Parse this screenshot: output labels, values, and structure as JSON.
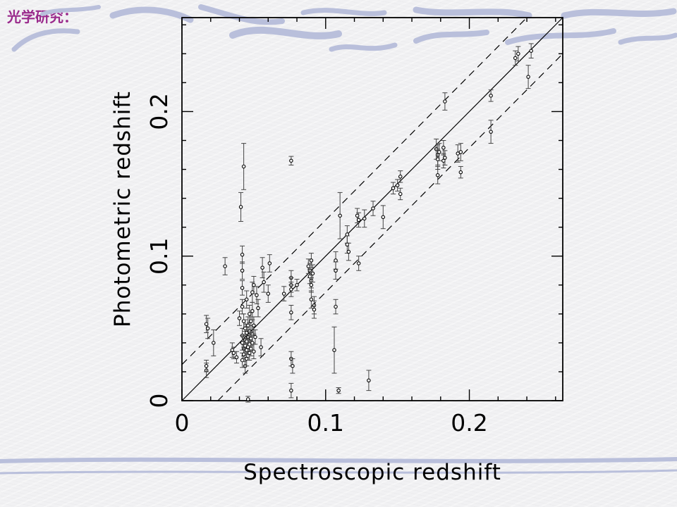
{
  "slide": {
    "title": "光学研究："
  },
  "chart_data": {
    "type": "scatter",
    "title": "",
    "xlabel": "Spectroscopic redshift",
    "ylabel": "Photometric redshift",
    "xlim": [
      0,
      0.265
    ],
    "ylim": [
      0,
      0.265
    ],
    "x_tick_labels": [
      "0",
      "0.1",
      "0.2"
    ],
    "y_tick_labels": [
      "0",
      "0.1",
      "0.2"
    ],
    "x_ticks": [
      0,
      0.1,
      0.2
    ],
    "y_ticks": [
      0,
      0.1,
      0.2
    ],
    "grid": false,
    "reference_lines": [
      {
        "name": "one-to-one",
        "style": "solid",
        "offset": 0
      },
      {
        "name": "upper-bound",
        "style": "dashed",
        "offset": 0.025
      },
      {
        "name": "lower-bound",
        "style": "dashed",
        "offset": -0.025
      }
    ],
    "points": [
      {
        "x": 0.017,
        "y": 0.053,
        "e": 0.006
      },
      {
        "x": 0.017,
        "y": 0.021,
        "e": 0.005
      },
      {
        "x": 0.017,
        "y": 0.024,
        "e": 0.004
      },
      {
        "x": 0.018,
        "y": 0.05,
        "e": 0.007
      },
      {
        "x": 0.022,
        "y": 0.04,
        "e": 0.009
      },
      {
        "x": 0.03,
        "y": 0.093,
        "e": 0.006
      },
      {
        "x": 0.035,
        "y": 0.035,
        "e": 0.005
      },
      {
        "x": 0.036,
        "y": 0.033,
        "e": 0.004
      },
      {
        "x": 0.038,
        "y": 0.03,
        "e": 0.004
      },
      {
        "x": 0.04,
        "y": 0.057,
        "e": 0.005
      },
      {
        "x": 0.041,
        "y": 0.134,
        "e": 0.01
      },
      {
        "x": 0.043,
        "y": 0.162,
        "e": 0.016
      },
      {
        "x": 0.042,
        "y": 0.101,
        "e": 0.006
      },
      {
        "x": 0.042,
        "y": 0.09,
        "e": 0.006
      },
      {
        "x": 0.042,
        "y": 0.078,
        "e": 0.005
      },
      {
        "x": 0.042,
        "y": 0.065,
        "e": 0.005
      },
      {
        "x": 0.042,
        "y": 0.045,
        "e": 0.005
      },
      {
        "x": 0.042,
        "y": 0.04,
        "e": 0.005
      },
      {
        "x": 0.042,
        "y": 0.028,
        "e": 0.005
      },
      {
        "x": 0.043,
        "y": 0.055,
        "e": 0.005
      },
      {
        "x": 0.043,
        "y": 0.036,
        "e": 0.005
      },
      {
        "x": 0.043,
        "y": 0.032,
        "e": 0.005
      },
      {
        "x": 0.044,
        "y": 0.05,
        "e": 0.006
      },
      {
        "x": 0.044,
        "y": 0.042,
        "e": 0.006
      },
      {
        "x": 0.044,
        "y": 0.038,
        "e": 0.005
      },
      {
        "x": 0.044,
        "y": 0.024,
        "e": 0.005
      },
      {
        "x": 0.045,
        "y": 0.07,
        "e": 0.006
      },
      {
        "x": 0.045,
        "y": 0.047,
        "e": 0.006
      },
      {
        "x": 0.045,
        "y": 0.041,
        "e": 0.005
      },
      {
        "x": 0.045,
        "y": 0.035,
        "e": 0.005
      },
      {
        "x": 0.045,
        "y": 0.029,
        "e": 0.005
      },
      {
        "x": 0.046,
        "y": 0.052,
        "e": 0.006
      },
      {
        "x": 0.046,
        "y": 0.044,
        "e": 0.005
      },
      {
        "x": 0.046,
        "y": 0.037,
        "e": 0.005
      },
      {
        "x": 0.046,
        "y": 0.001,
        "e": 0.002
      },
      {
        "x": 0.047,
        "y": 0.06,
        "e": 0.006
      },
      {
        "x": 0.047,
        "y": 0.048,
        "e": 0.006
      },
      {
        "x": 0.047,
        "y": 0.039,
        "e": 0.005
      },
      {
        "x": 0.047,
        "y": 0.033,
        "e": 0.005
      },
      {
        "x": 0.048,
        "y": 0.055,
        "e": 0.006
      },
      {
        "x": 0.048,
        "y": 0.043,
        "e": 0.005
      },
      {
        "x": 0.048,
        "y": 0.036,
        "e": 0.005
      },
      {
        "x": 0.049,
        "y": 0.075,
        "e": 0.007
      },
      {
        "x": 0.049,
        "y": 0.062,
        "e": 0.006
      },
      {
        "x": 0.049,
        "y": 0.046,
        "e": 0.006
      },
      {
        "x": 0.049,
        "y": 0.04,
        "e": 0.005
      },
      {
        "x": 0.05,
        "y": 0.052,
        "e": 0.006
      },
      {
        "x": 0.05,
        "y": 0.034,
        "e": 0.005
      },
      {
        "x": 0.05,
        "y": 0.08,
        "e": 0.006
      },
      {
        "x": 0.051,
        "y": 0.044,
        "e": 0.005
      },
      {
        "x": 0.052,
        "y": 0.073,
        "e": 0.006
      },
      {
        "x": 0.053,
        "y": 0.064,
        "e": 0.006
      },
      {
        "x": 0.055,
        "y": 0.037,
        "e": 0.006
      },
      {
        "x": 0.056,
        "y": 0.092,
        "e": 0.007
      },
      {
        "x": 0.057,
        "y": 0.082,
        "e": 0.007
      },
      {
        "x": 0.06,
        "y": 0.074,
        "e": 0.006
      },
      {
        "x": 0.061,
        "y": 0.095,
        "e": 0.006
      },
      {
        "x": 0.071,
        "y": 0.074,
        "e": 0.005
      },
      {
        "x": 0.076,
        "y": 0.166,
        "e": 0.003
      },
      {
        "x": 0.076,
        "y": 0.085,
        "e": 0.005
      },
      {
        "x": 0.076,
        "y": 0.08,
        "e": 0.005
      },
      {
        "x": 0.076,
        "y": 0.077,
        "e": 0.005
      },
      {
        "x": 0.076,
        "y": 0.061,
        "e": 0.005
      },
      {
        "x": 0.076,
        "y": 0.029,
        "e": 0.005
      },
      {
        "x": 0.077,
        "y": 0.024,
        "e": 0.005
      },
      {
        "x": 0.076,
        "y": 0.007,
        "e": 0.005
      },
      {
        "x": 0.08,
        "y": 0.08,
        "e": 0.004
      },
      {
        "x": 0.088,
        "y": 0.093,
        "e": 0.005
      },
      {
        "x": 0.089,
        "y": 0.09,
        "e": 0.005
      },
      {
        "x": 0.089,
        "y": 0.086,
        "e": 0.005
      },
      {
        "x": 0.09,
        "y": 0.083,
        "e": 0.005
      },
      {
        "x": 0.09,
        "y": 0.08,
        "e": 0.005
      },
      {
        "x": 0.09,
        "y": 0.097,
        "e": 0.005
      },
      {
        "x": 0.09,
        "y": 0.07,
        "e": 0.006
      },
      {
        "x": 0.091,
        "y": 0.088,
        "e": 0.006
      },
      {
        "x": 0.092,
        "y": 0.066,
        "e": 0.006
      },
      {
        "x": 0.092,
        "y": 0.063,
        "e": 0.006
      },
      {
        "x": 0.107,
        "y": 0.097,
        "e": 0.006
      },
      {
        "x": 0.107,
        "y": 0.09,
        "e": 0.006
      },
      {
        "x": 0.107,
        "y": 0.065,
        "e": 0.005
      },
      {
        "x": 0.106,
        "y": 0.035,
        "e": 0.016
      },
      {
        "x": 0.109,
        "y": 0.007,
        "e": 0.002
      },
      {
        "x": 0.11,
        "y": 0.128,
        "e": 0.016
      },
      {
        "x": 0.115,
        "y": 0.115,
        "e": 0.006
      },
      {
        "x": 0.115,
        "y": 0.108,
        "e": 0.006
      },
      {
        "x": 0.116,
        "y": 0.103,
        "e": 0.006
      },
      {
        "x": 0.122,
        "y": 0.128,
        "e": 0.005
      },
      {
        "x": 0.123,
        "y": 0.125,
        "e": 0.005
      },
      {
        "x": 0.123,
        "y": 0.095,
        "e": 0.005
      },
      {
        "x": 0.127,
        "y": 0.126,
        "e": 0.006
      },
      {
        "x": 0.13,
        "y": 0.014,
        "e": 0.007
      },
      {
        "x": 0.133,
        "y": 0.133,
        "e": 0.005
      },
      {
        "x": 0.14,
        "y": 0.127,
        "e": 0.008
      },
      {
        "x": 0.147,
        "y": 0.147,
        "e": 0.004
      },
      {
        "x": 0.15,
        "y": 0.149,
        "e": 0.004
      },
      {
        "x": 0.152,
        "y": 0.155,
        "e": 0.004
      },
      {
        "x": 0.152,
        "y": 0.143,
        "e": 0.004
      },
      {
        "x": 0.177,
        "y": 0.174,
        "e": 0.007
      },
      {
        "x": 0.178,
        "y": 0.17,
        "e": 0.007
      },
      {
        "x": 0.178,
        "y": 0.167,
        "e": 0.007
      },
      {
        "x": 0.178,
        "y": 0.156,
        "e": 0.006
      },
      {
        "x": 0.179,
        "y": 0.172,
        "e": 0.006
      },
      {
        "x": 0.182,
        "y": 0.175,
        "e": 0.005
      },
      {
        "x": 0.182,
        "y": 0.166,
        "e": 0.005
      },
      {
        "x": 0.183,
        "y": 0.168,
        "e": 0.005
      },
      {
        "x": 0.183,
        "y": 0.207,
        "e": 0.006
      },
      {
        "x": 0.192,
        "y": 0.171,
        "e": 0.006
      },
      {
        "x": 0.194,
        "y": 0.172,
        "e": 0.006
      },
      {
        "x": 0.194,
        "y": 0.158,
        "e": 0.004
      },
      {
        "x": 0.215,
        "y": 0.211,
        "e": 0.004
      },
      {
        "x": 0.215,
        "y": 0.186,
        "e": 0.008
      },
      {
        "x": 0.232,
        "y": 0.237,
        "e": 0.005
      },
      {
        "x": 0.234,
        "y": 0.24,
        "e": 0.005
      },
      {
        "x": 0.241,
        "y": 0.224,
        "e": 0.008
      },
      {
        "x": 0.243,
        "y": 0.242,
        "e": 0.005
      }
    ]
  }
}
